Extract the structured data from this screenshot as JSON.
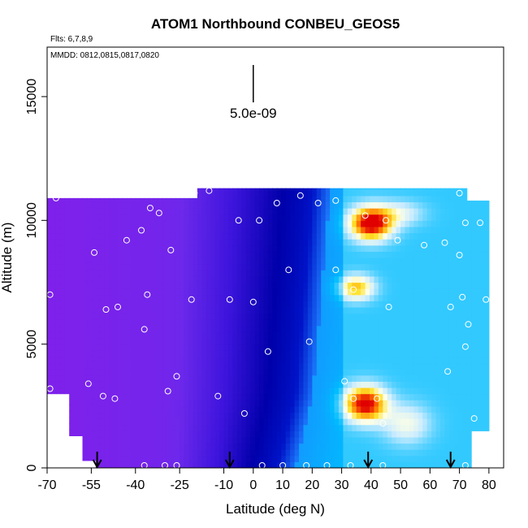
{
  "chart_data": {
    "type": "heatmap",
    "title": "ATOM1 Northbound CONBEU_GEOS5",
    "subtitle_flights": "Flts: 6,7,8,9",
    "subtitle_dates": "MMDD: 0812,0815,0817,0820",
    "xlabel": "Latitude (deg N)",
    "ylabel": "Altitude (m)",
    "xlim": [
      -70,
      85
    ],
    "ylim": [
      0,
      17000
    ],
    "x_ticks": [
      -70,
      -55,
      -40,
      -25,
      -10,
      0,
      10,
      20,
      30,
      40,
      50,
      60,
      70,
      80
    ],
    "x_tick_labels": [
      "-70",
      "-55",
      "-40",
      "-25",
      "-10",
      "0",
      "10",
      "20",
      "30",
      "40",
      "50",
      "60",
      "70",
      "80"
    ],
    "y_ticks": [
      0,
      5000,
      10000,
      15000
    ],
    "y_tick_labels": [
      "0",
      "5000",
      "10000",
      "15000"
    ],
    "scale_bar_label": "5.0e-09",
    "scale_bar_value": 5e-09,
    "scale_bar_x": 0,
    "flight_arrows_lat": [
      -53,
      -8,
      39,
      67
    ],
    "observation_points": [
      [
        -67,
        10900
      ],
      [
        -69,
        7000
      ],
      [
        -69,
        3200
      ],
      [
        -56,
        3400
      ],
      [
        -54,
        8700
      ],
      [
        -50,
        6400
      ],
      [
        -46,
        6500
      ],
      [
        -47,
        2800
      ],
      [
        -51,
        2900
      ],
      [
        -43,
        9200
      ],
      [
        -38,
        9600
      ],
      [
        -35,
        10500
      ],
      [
        -32,
        10300
      ],
      [
        -36,
        7000
      ],
      [
        -37,
        5600
      ],
      [
        -28,
        8800
      ],
      [
        -25,
        11100
      ],
      [
        -20,
        11100
      ],
      [
        -15,
        11200
      ],
      [
        -21,
        6800
      ],
      [
        -26,
        3700
      ],
      [
        -29,
        3100
      ],
      [
        -12,
        2900
      ],
      [
        -5,
        10000
      ],
      [
        2,
        10000
      ],
      [
        -8,
        6800
      ],
      [
        0,
        6700
      ],
      [
        -3,
        2200
      ],
      [
        8,
        10700
      ],
      [
        16,
        11000
      ],
      [
        22,
        10700
      ],
      [
        12,
        8000
      ],
      [
        5,
        4700
      ],
      [
        19,
        5100
      ],
      [
        28,
        8000
      ],
      [
        34,
        7200
      ],
      [
        31,
        3500
      ],
      [
        34,
        2800
      ],
      [
        42,
        2800
      ],
      [
        44,
        1800
      ],
      [
        49,
        9200
      ],
      [
        58,
        9000
      ],
      [
        65,
        9100
      ],
      [
        70,
        8600
      ],
      [
        71,
        6900
      ],
      [
        67,
        6500
      ],
      [
        46,
        6500
      ],
      [
        72,
        9900
      ],
      [
        77,
        9900
      ],
      [
        79,
        6800
      ],
      [
        73,
        5800
      ],
      [
        72,
        4900
      ],
      [
        66,
        3900
      ],
      [
        75,
        2000
      ],
      [
        -57,
        100
      ],
      [
        -37,
        100
      ],
      [
        -30,
        100
      ],
      [
        -26,
        100
      ],
      [
        3,
        100
      ],
      [
        10,
        100
      ],
      [
        18,
        100
      ],
      [
        25,
        100
      ],
      [
        33,
        100
      ],
      [
        44,
        100
      ],
      [
        72,
        100
      ],
      [
        45,
        10000
      ],
      [
        38,
        10200
      ],
      [
        28,
        10800
      ],
      [
        70,
        11100
      ]
    ],
    "coverage": {
      "low_layer": [
        [
          -70,
          10900
        ],
        [
          -19,
          10900
        ],
        [
          -19,
          11300
        ],
        [
          72,
          11300
        ]
      ],
      "domain_lat": [
        -70,
        80
      ]
    },
    "concentration_scale": [
      "purple (low)",
      "dark blue",
      "light blue",
      "white",
      "yellow",
      "red (high)"
    ]
  }
}
